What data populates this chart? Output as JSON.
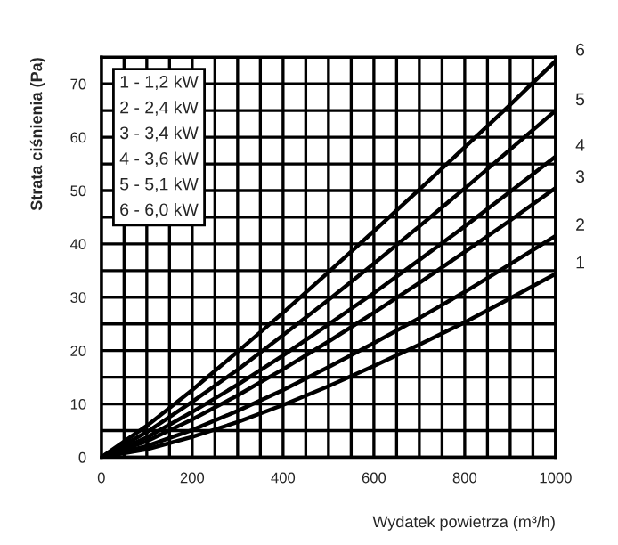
{
  "chart_data": {
    "type": "line",
    "xlabel": "Wydatek powietrza (m³/h)",
    "ylabel": "Strata ciśnienia (Pa)",
    "x": [
      0,
      100,
      200,
      300,
      400,
      500,
      600,
      700,
      800,
      900,
      1000
    ],
    "series": [
      {
        "name": "1",
        "color": "#000000",
        "values": [
          0,
          1.5,
          3.8,
          6.6,
          9.8,
          13.3,
          17.1,
          21.1,
          25.3,
          29.8,
          34.4
        ]
      },
      {
        "name": "2",
        "color": "#000000",
        "values": [
          0,
          2.1,
          5.1,
          8.7,
          12.6,
          16.9,
          21.4,
          26.1,
          31.0,
          36.2,
          41.5
        ]
      },
      {
        "name": "3",
        "color": "#000000",
        "values": [
          0,
          3.0,
          7.1,
          11.6,
          16.5,
          21.7,
          27.1,
          32.7,
          38.5,
          44.4,
          50.5
        ]
      },
      {
        "name": "4",
        "color": "#000000",
        "values": [
          0,
          3.7,
          8.5,
          13.6,
          19.1,
          24.9,
          30.8,
          37.0,
          43.3,
          49.8,
          56.4
        ]
      },
      {
        "name": "5",
        "color": "#000000",
        "values": [
          0,
          4.7,
          10.4,
          16.4,
          22.9,
          29.5,
          36.3,
          43.3,
          50.4,
          57.7,
          65.0
        ]
      },
      {
        "name": "6",
        "color": "#000000",
        "values": [
          0,
          5.9,
          12.6,
          19.8,
          27.1,
          34.7,
          42.4,
          50.2,
          58.1,
          66.1,
          74.3
        ]
      }
    ],
    "annotations": [
      "1 - 1,2 kW",
      "2 - 2,4 kW",
      "3 - 3,4 kW",
      "4 - 3,6 kW",
      "5 - 5,1 kW",
      "6 - 6,0 kW"
    ],
    "xlim": [
      0,
      1000
    ],
    "ylim": [
      0,
      75
    ],
    "xticks": [
      0,
      {
        "value": 50,
        "label": null
      },
      {
        "value": 100,
        "label": null
      },
      {
        "value": 150,
        "label": null
      },
      200,
      {
        "value": 250,
        "label": null
      },
      {
        "value": 300,
        "label": null
      },
      {
        "value": 350,
        "label": null
      },
      400,
      {
        "value": 450,
        "label": null
      },
      {
        "value": 500,
        "label": null
      },
      {
        "value": 550,
        "label": null
      },
      600,
      {
        "value": 650,
        "label": null
      },
      {
        "value": 700,
        "label": null
      },
      {
        "value": 750,
        "label": null
      },
      800,
      {
        "value": 850,
        "label": null
      },
      {
        "value": 900,
        "label": null
      },
      {
        "value": 950,
        "label": null
      },
      1000
    ],
    "yticks": [
      0,
      {
        "value": 5,
        "label": null
      },
      10,
      {
        "value": 15,
        "label": null
      },
      20,
      {
        "value": 25,
        "label": null
      },
      30,
      {
        "value": 35,
        "label": null
      },
      40,
      {
        "value": 45,
        "label": null
      },
      50,
      {
        "value": 55,
        "label": null
      },
      60,
      {
        "value": 65,
        "label": null
      },
      70,
      {
        "value": 75,
        "label": null
      }
    ],
    "grid": true,
    "legend": false,
    "marker": "none",
    "line_style": "solid"
  }
}
